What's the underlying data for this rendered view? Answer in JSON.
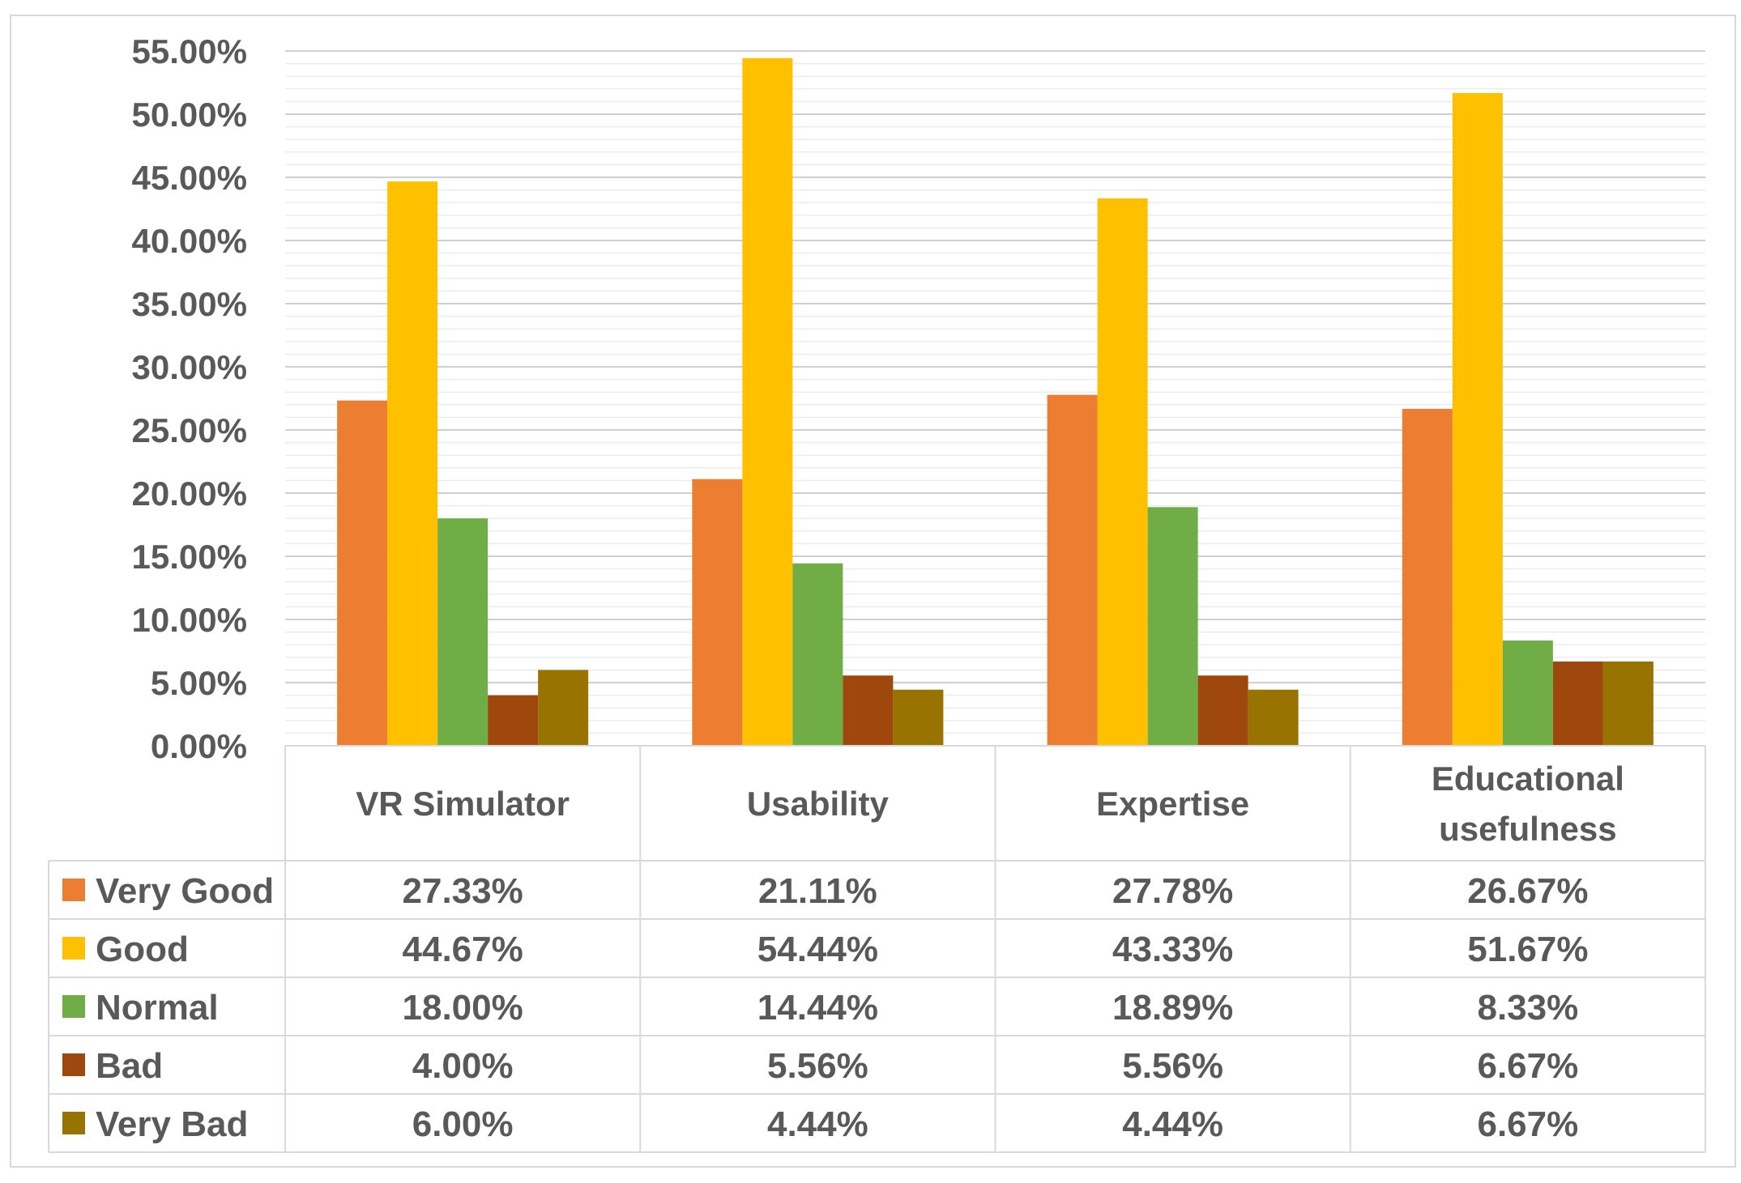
{
  "chart_data": {
    "type": "bar",
    "categories": [
      "VR Simulator",
      "Usability",
      "Expertise",
      "Educational usefulness"
    ],
    "series": [
      {
        "name": "Very Good",
        "color": "#ed7d31",
        "values": [
          27.33,
          21.11,
          27.78,
          26.67
        ],
        "labels": [
          "27.33%",
          "21.11%",
          "27.78%",
          "26.67%"
        ]
      },
      {
        "name": "Good",
        "color": "#ffc000",
        "values": [
          44.67,
          54.44,
          43.33,
          51.67
        ],
        "labels": [
          "44.67%",
          "54.44%",
          "43.33%",
          "51.67%"
        ]
      },
      {
        "name": "Normal",
        "color": "#70ad47",
        "values": [
          18.0,
          14.44,
          18.89,
          8.33
        ],
        "labels": [
          "18.00%",
          "14.44%",
          "18.89%",
          "8.33%"
        ]
      },
      {
        "name": "Bad",
        "color": "#9e480e",
        "values": [
          4.0,
          5.56,
          5.56,
          6.67
        ],
        "labels": [
          "4.00%",
          "5.56%",
          "5.56%",
          "6.67%"
        ]
      },
      {
        "name": "Very Bad",
        "color": "#997300",
        "values": [
          6.0,
          4.44,
          4.44,
          6.67
        ],
        "labels": [
          "6.00%",
          "4.44%",
          "4.44%",
          "6.67%"
        ]
      }
    ],
    "ylim": [
      0,
      55
    ],
    "yticks": [
      "0.00%",
      "5.00%",
      "10.00%",
      "15.00%",
      "20.00%",
      "25.00%",
      "30.00%",
      "35.00%",
      "40.00%",
      "45.00%",
      "50.00%",
      "55.00%"
    ],
    "grid": true,
    "legend": "data-table",
    "title": "",
    "xlabel": "",
    "ylabel": ""
  }
}
